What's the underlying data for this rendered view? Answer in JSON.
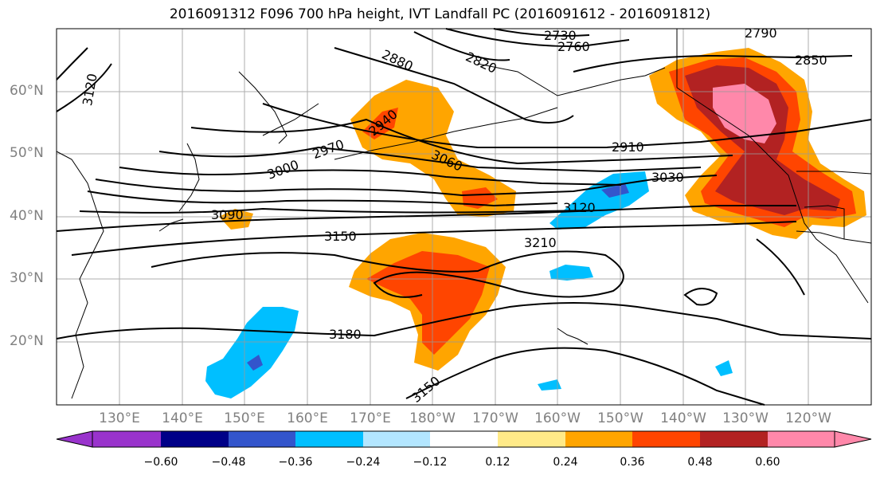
{
  "title": "2016091312 F096 700 hPa height, IVT Landfall PC (2016091612 - 2016091812)",
  "lat_labels": [
    "60°N",
    "50°N",
    "40°N",
    "30°N",
    "20°N"
  ],
  "lon_labels": [
    "130°E",
    "140°E",
    "150°E",
    "160°E",
    "170°E",
    "180°W",
    "170°W",
    "160°W",
    "150°W",
    "140°W",
    "130°W",
    "120°W"
  ],
  "contour_labels": [
    "2730",
    "2760",
    "2790",
    "2820",
    "2850",
    "2880",
    "2910",
    "2940",
    "2970",
    "3000",
    "3030",
    "3060",
    "3090",
    "3120",
    "3120",
    "3150",
    "3150",
    "3180",
    "3210"
  ],
  "colorbar": {
    "ticks": [
      "−0.60",
      "−0.48",
      "−0.36",
      "−0.24",
      "−0.12",
      "0.12",
      "0.24",
      "0.36",
      "0.48",
      "0.60"
    ],
    "colors": [
      "#9933CC",
      "#000088",
      "#3355CC",
      "#00BFFF",
      "#B3E6FF",
      "#FFFFFF",
      "#FFEA88",
      "#FFA500",
      "#FF4500",
      "#B22222",
      "#FF88AA",
      "#FF88AA"
    ]
  }
}
